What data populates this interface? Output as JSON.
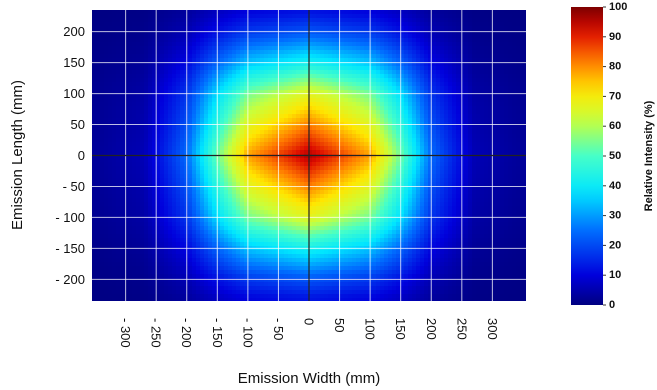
{
  "chart_data": {
    "type": "heatmap",
    "title": "",
    "xlabel": "Emission Width (mm)",
    "ylabel": "Emission Length (mm)",
    "colorbar_label": "Relative Intensity (%)",
    "xlim": [
      -355,
      355
    ],
    "ylim": [
      -235,
      235
    ],
    "x_ticks": [
      -300,
      -250,
      -200,
      -150,
      -100,
      -50,
      0,
      50,
      100,
      150,
      200,
      250,
      300
    ],
    "x_tick_labels": [
      "- 300",
      "- 250",
      "- 200",
      "- 150",
      "- 100",
      "- 50",
      "0",
      "50",
      "100",
      "150",
      "200",
      "250",
      "300"
    ],
    "y_ticks": [
      200,
      150,
      100,
      50,
      0,
      -50,
      -100,
      -150,
      -200
    ],
    "y_tick_labels": [
      "200",
      "150",
      "100",
      "50",
      "0",
      "- 50",
      "- 100",
      "- 150",
      "- 200"
    ],
    "colorbar_ticks": [
      100,
      90,
      80,
      70,
      60,
      50,
      40,
      30,
      20,
      10,
      0
    ],
    "colorbar_tick_labels": [
      "100",
      "90",
      "80",
      "70",
      "60",
      "50",
      "40",
      "30",
      "20",
      "10",
      "0"
    ],
    "value_range": [
      0,
      100
    ],
    "colormap": "jet",
    "grid": true,
    "peak": {
      "x": 0,
      "y": 0,
      "value": 100
    },
    "intensity_profile_x": {
      "x": [
        -340,
        -270,
        -200,
        -150,
        -100,
        0,
        100,
        150,
        200,
        270,
        340
      ],
      "value": [
        3,
        6,
        25,
        55,
        80,
        98,
        80,
        55,
        25,
        6,
        3
      ]
    },
    "intensity_profile_y": {
      "y": [
        -230,
        -200,
        -150,
        -100,
        0,
        100,
        150,
        200,
        230
      ],
      "value": [
        13,
        22,
        43,
        68,
        98,
        68,
        43,
        22,
        13
      ]
    },
    "crosshair": {
      "x": 0,
      "y": 0
    }
  }
}
